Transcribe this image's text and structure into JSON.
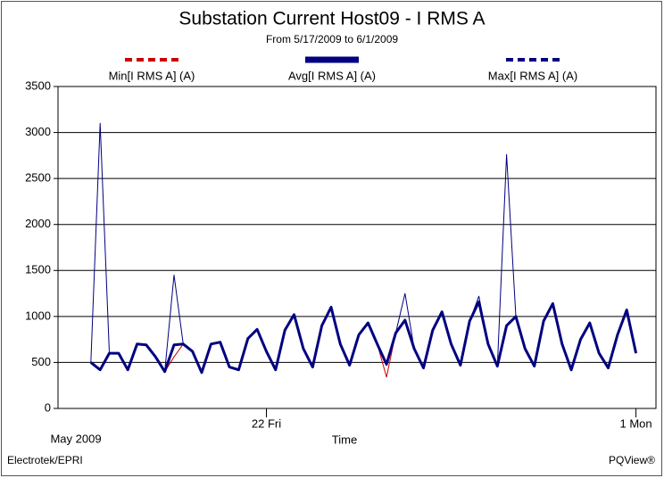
{
  "chart_data": {
    "type": "line",
    "title": "Substation Current Host09 - I RMS A",
    "subtitle": "From 5/17/2009 to 6/1/2009",
    "x_label": "Time",
    "x_period_label": "May 2009",
    "footer_left": "Electrotek/EPRI",
    "footer_right": "PQView®",
    "xlim": [
      "2009-05-16T08:40",
      "2009-06-01T13:00"
    ],
    "xticks": [
      {
        "value": "2009-05-22T00:00",
        "label": "22 Fri"
      },
      {
        "value": "2009-06-01T00:00",
        "label": "1 Mon"
      }
    ],
    "ylim": [
      0,
      3500
    ],
    "yticks": [
      0,
      500,
      1000,
      1500,
      2000,
      2500,
      3000,
      3500
    ],
    "grid": true,
    "x": [
      "2009-05-17T06:00",
      "2009-05-17T12:00",
      "2009-05-17T18:00",
      "2009-05-18T00:00",
      "2009-05-18T06:00",
      "2009-05-18T12:00",
      "2009-05-18T18:00",
      "2009-05-19T00:00",
      "2009-05-19T06:00",
      "2009-05-19T12:00",
      "2009-05-19T18:00",
      "2009-05-20T00:00",
      "2009-05-20T06:00",
      "2009-05-20T12:00",
      "2009-05-20T18:00",
      "2009-05-21T00:00",
      "2009-05-21T06:00",
      "2009-05-21T12:00",
      "2009-05-21T18:00",
      "2009-05-22T00:00",
      "2009-05-22T06:00",
      "2009-05-22T12:00",
      "2009-05-22T18:00",
      "2009-05-23T00:00",
      "2009-05-23T06:00",
      "2009-05-23T12:00",
      "2009-05-23T18:00",
      "2009-05-24T00:00",
      "2009-05-24T06:00",
      "2009-05-24T12:00",
      "2009-05-24T18:00",
      "2009-05-25T00:00",
      "2009-05-25T06:00",
      "2009-05-25T12:00",
      "2009-05-25T18:00",
      "2009-05-26T00:00",
      "2009-05-26T06:00",
      "2009-05-26T12:00",
      "2009-05-26T18:00",
      "2009-05-27T00:00",
      "2009-05-27T06:00",
      "2009-05-27T12:00",
      "2009-05-27T18:00",
      "2009-05-28T00:00",
      "2009-05-28T06:00",
      "2009-05-28T12:00",
      "2009-05-28T18:00",
      "2009-05-29T00:00",
      "2009-05-29T06:00",
      "2009-05-29T12:00",
      "2009-05-29T18:00",
      "2009-05-30T00:00",
      "2009-05-30T06:00",
      "2009-05-30T12:00",
      "2009-05-30T18:00",
      "2009-05-31T00:00",
      "2009-05-31T06:00",
      "2009-05-31T12:00",
      "2009-05-31T18:00",
      "2009-06-01T00:00"
    ],
    "series": [
      {
        "name": "Max[I RMS A] (A)",
        "color": "#000080",
        "style": "dashed",
        "width": 1,
        "values": [
          500,
          3100,
          600,
          600,
          420,
          700,
          690,
          560,
          400,
          1450,
          700,
          620,
          390,
          700,
          720,
          450,
          420,
          760,
          860,
          620,
          420,
          850,
          1020,
          650,
          450,
          900,
          1100,
          700,
          470,
          800,
          930,
          700,
          480,
          820,
          1250,
          650,
          440,
          850,
          1050,
          700,
          470,
          950,
          1220,
          700,
          460,
          2760,
          1000,
          650,
          460,
          950,
          1140,
          700,
          420,
          750,
          930,
          600,
          440,
          800,
          1070,
          600
        ]
      },
      {
        "name": "Min[I RMS A] (A)",
        "color": "#cc0000",
        "style": "dashed",
        "width": 1,
        "values": [
          500,
          420,
          600,
          600,
          420,
          700,
          690,
          560,
          400,
          560,
          700,
          620,
          390,
          700,
          720,
          450,
          420,
          760,
          860,
          620,
          420,
          850,
          1020,
          650,
          450,
          900,
          1100,
          700,
          470,
          800,
          930,
          700,
          340,
          820,
          960,
          650,
          440,
          850,
          1050,
          700,
          470,
          950,
          1160,
          700,
          460,
          900,
          1000,
          650,
          460,
          950,
          1140,
          700,
          420,
          750,
          930,
          600,
          440,
          800,
          1070,
          600
        ]
      },
      {
        "name": "Avg[I RMS A] (A)",
        "color": "#000080",
        "style": "solid",
        "width": 3,
        "values": [
          500,
          420,
          600,
          600,
          420,
          700,
          690,
          560,
          400,
          690,
          700,
          620,
          390,
          700,
          720,
          450,
          420,
          760,
          860,
          620,
          420,
          850,
          1020,
          650,
          450,
          900,
          1100,
          700,
          470,
          800,
          930,
          700,
          480,
          820,
          960,
          650,
          440,
          850,
          1050,
          700,
          470,
          950,
          1160,
          700,
          460,
          900,
          1000,
          650,
          460,
          950,
          1140,
          700,
          420,
          750,
          930,
          600,
          440,
          800,
          1070,
          600
        ]
      }
    ],
    "legend_order": [
      1,
      2,
      0
    ]
  }
}
